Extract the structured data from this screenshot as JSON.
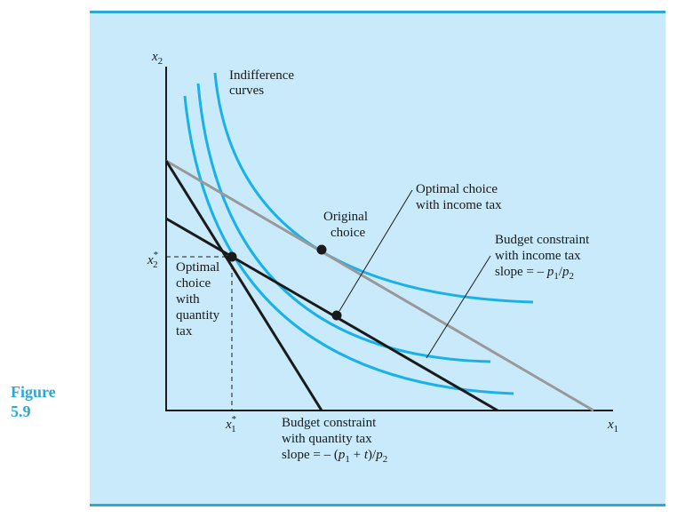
{
  "figure": {
    "label": "Figure",
    "number": "5.9"
  },
  "axes": {
    "y_label": "x",
    "y_sub": "2",
    "x_label": "x",
    "x_sub": "1"
  },
  "ticks": {
    "y_star": {
      "base": "x",
      "sub": "2",
      "sup": "*"
    },
    "x_star": {
      "base": "x",
      "sub": "1",
      "sup": "*"
    }
  },
  "labels": {
    "indifference": [
      "Indifference",
      "curves"
    ],
    "original": [
      "Original",
      "choice"
    ],
    "income_opt": [
      "Optimal choice",
      "with income tax"
    ],
    "budget_income": [
      "Budget constraint",
      "with income tax"
    ],
    "budget_income_slope": {
      "prefix": "slope = – ",
      "p1": "p",
      "s1": "1",
      "slash": "/",
      "p2": "p",
      "s2": "2"
    },
    "quantity_opt": [
      "Optimal",
      "choice",
      "with",
      "quantity",
      "tax"
    ],
    "budget_quantity": [
      "Budget constraint",
      "with quantity tax"
    ],
    "budget_quantity_slope": {
      "prefix": "slope = – (",
      "p1": "p",
      "s1": "1",
      "plus": " + ",
      "t": "t",
      "close": ")/",
      "p2": "p",
      "s2": "2"
    }
  },
  "colors": {
    "curve": "#1ab0e8",
    "gray": "#999999",
    "black": "#1a1a1a",
    "panel": "#c8eafa",
    "rule": "#2aa8d8"
  }
}
